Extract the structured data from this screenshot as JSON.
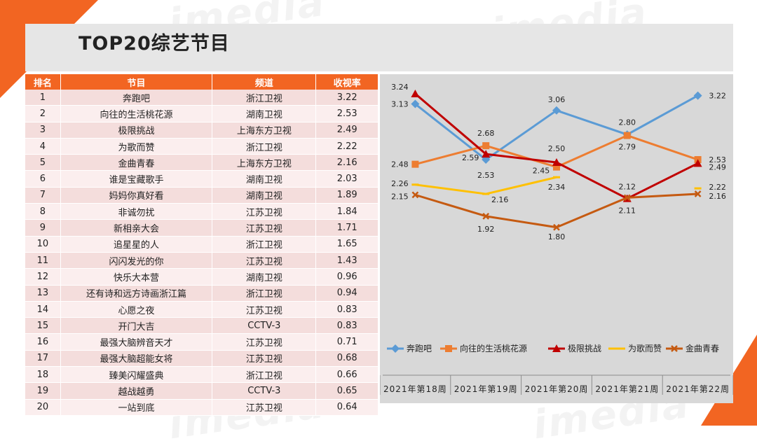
{
  "title": "TOP20综艺节目",
  "watermark": "imedia",
  "colors": {
    "accent": "#f26522",
    "header_bg": "#e6e6e6",
    "chart_bg": "#d8d8d8"
  },
  "table": {
    "headers": [
      "排名",
      "节目",
      "频道",
      "收视率"
    ],
    "rows": [
      [
        "1",
        "奔跑吧",
        "浙江卫视",
        "3.22"
      ],
      [
        "2",
        "向往的生活桃花源",
        "湖南卫视",
        "2.53"
      ],
      [
        "3",
        "极限挑战",
        "上海东方卫视",
        "2.49"
      ],
      [
        "4",
        "为歌而赞",
        "浙江卫视",
        "2.22"
      ],
      [
        "5",
        "金曲青春",
        "上海东方卫视",
        "2.16"
      ],
      [
        "6",
        "谁是宝藏歌手",
        "湖南卫视",
        "2.03"
      ],
      [
        "7",
        "妈妈你真好看",
        "湖南卫视",
        "1.89"
      ],
      [
        "8",
        "非诚勿扰",
        "江苏卫视",
        "1.84"
      ],
      [
        "9",
        "新相亲大会",
        "江苏卫视",
        "1.71"
      ],
      [
        "10",
        "追星星的人",
        "浙江卫视",
        "1.65"
      ],
      [
        "11",
        "闪闪发光的你",
        "江苏卫视",
        "1.43"
      ],
      [
        "12",
        "快乐大本营",
        "湖南卫视",
        "0.96"
      ],
      [
        "13",
        "还有诗和远方诗画浙江篇",
        "浙江卫视",
        "0.94"
      ],
      [
        "14",
        "心愿之夜",
        "江苏卫视",
        "0.83"
      ],
      [
        "15",
        "开门大吉",
        "CCTV-3",
        "0.83"
      ],
      [
        "16",
        "最强大脑辨音天才",
        "江苏卫视",
        "0.71"
      ],
      [
        "17",
        "最强大脑超能女将",
        "江苏卫视",
        "0.68"
      ],
      [
        "18",
        "臻美闪耀盛典",
        "浙江卫视",
        "0.66"
      ],
      [
        "19",
        "越战越勇",
        "CCTV-3",
        "0.65"
      ],
      [
        "20",
        "一站到底",
        "江苏卫视",
        "0.64"
      ]
    ]
  },
  "chart_data": {
    "type": "line",
    "title": "",
    "xlabel": "",
    "ylabel": "",
    "categories": [
      "2021年第18周",
      "2021年第19周",
      "2021年第20周",
      "2021年第21周",
      "2021年第22周"
    ],
    "ylim": [
      1.7,
      3.3
    ],
    "grid": false,
    "legend_position": "bottom",
    "series": [
      {
        "name": "奔跑吧",
        "color": "#5b9bd5",
        "marker": "diamond",
        "values": [
          3.13,
          2.53,
          3.06,
          2.8,
          3.22
        ]
      },
      {
        "name": "向往的生活桃花源",
        "color": "#ed7d31",
        "marker": "square",
        "values": [
          2.48,
          2.68,
          2.45,
          2.79,
          2.53
        ]
      },
      {
        "name": "极限挑战",
        "color": "#c00000",
        "marker": "triangle",
        "values": [
          3.24,
          2.59,
          2.5,
          2.11,
          2.49
        ]
      },
      {
        "name": "为歌而赞",
        "color": "#ffc000",
        "marker": "dash",
        "values": [
          2.26,
          2.16,
          2.34,
          null,
          2.22
        ]
      },
      {
        "name": "金曲青春",
        "color": "#c55a11",
        "marker": "x",
        "values": [
          2.15,
          1.92,
          1.8,
          2.12,
          2.16
        ]
      }
    ]
  }
}
